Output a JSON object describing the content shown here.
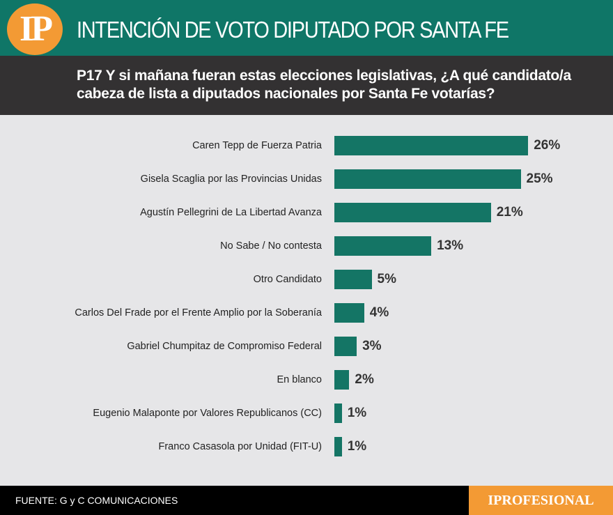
{
  "header": {
    "logo": "IP",
    "title": "INTENCIÓN DE VOTO DIPUTADO POR SANTA FE"
  },
  "question": "P17 Y si mañana fueran estas elecciones legislativas, ¿A qué candidato/a cabeza de lista a diputados nacionales por Santa Fe votarías?",
  "chart_data": {
    "type": "bar",
    "orientation": "horizontal",
    "bar_color": "#147565",
    "categories": [
      "Caren Tepp de Fuerza Patria",
      "Gisela Scaglia por las Provincias Unidas",
      "Agustín Pellegrini de La Libertad Avanza",
      "No Sabe / No contesta",
      "Otro Candidato",
      "Carlos Del Frade por el Frente Amplio por la Soberanía",
      "Gabriel Chumpitaz de Compromiso Federal",
      "En blanco",
      "Eugenio Malaponte por Valores Republicanos (CC)",
      "Franco Casasola por Unidad (FIT-U)"
    ],
    "values": [
      26,
      25,
      21,
      13,
      5,
      4,
      3,
      2,
      1,
      1
    ],
    "value_labels": [
      "26%",
      "25%",
      "21%",
      "13%",
      "5%",
      "4%",
      "3%",
      "2%",
      "1%",
      "1%"
    ]
  },
  "footer": {
    "source": "FUENTE: G y C COMUNICACIONES",
    "brand": "IPROFESIONAL"
  }
}
